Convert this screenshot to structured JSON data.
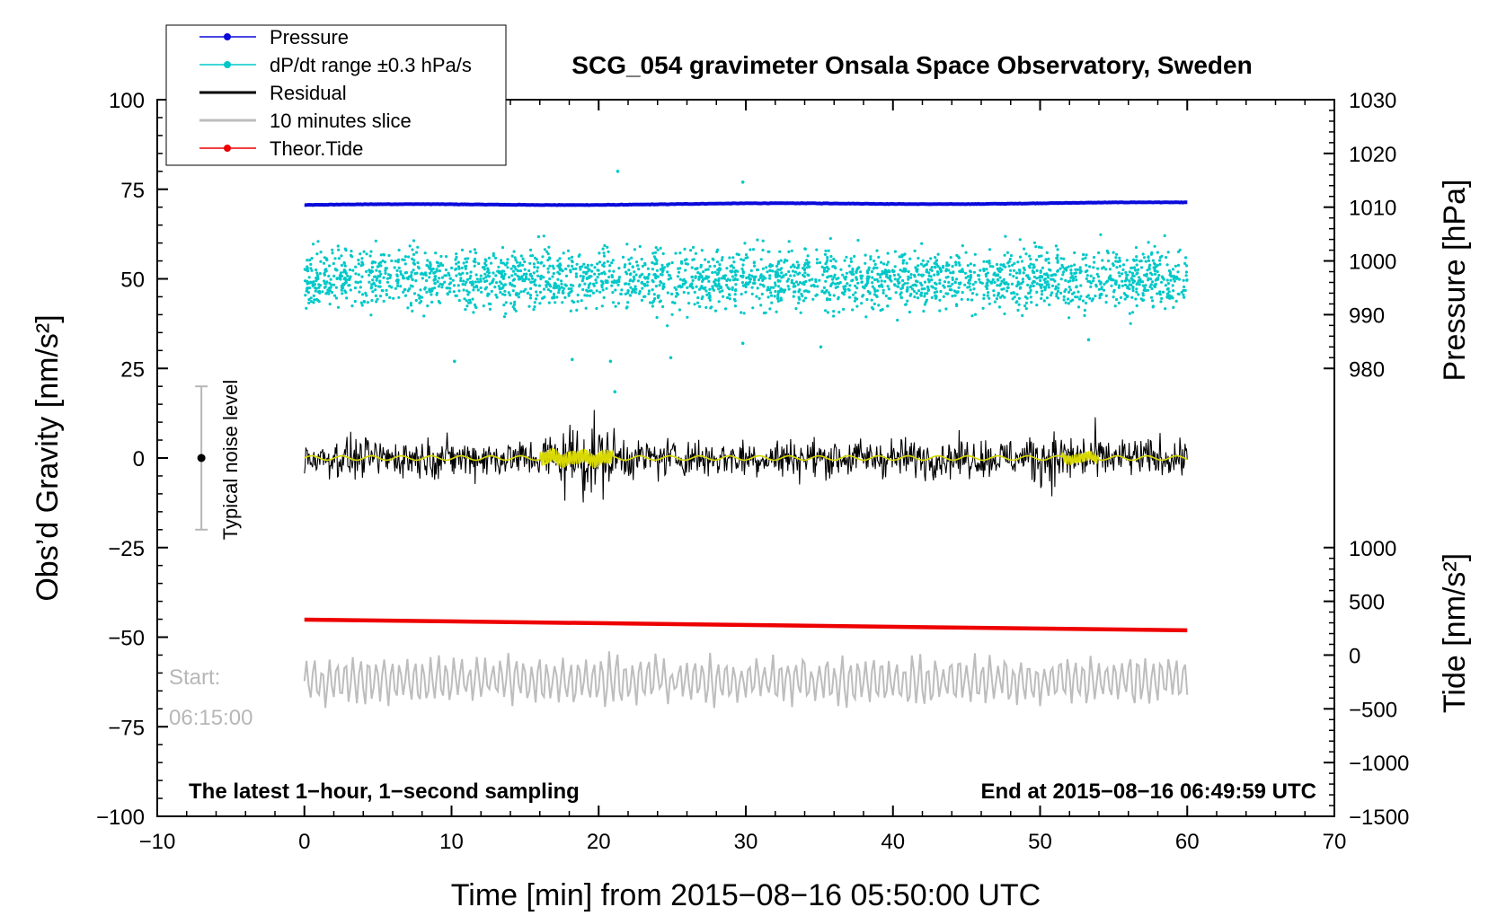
{
  "chart_data": {
    "type": "line",
    "title": "SCG_054 gravimeter Onsala Space Observatory, Sweden",
    "xlabel": "Time [min] from 2015−08−16 05:50:00 UTC",
    "ylabel_left": "Obs’d Gravity [nm/s²]",
    "ylabel_right_pressure": "Pressure [hPa]",
    "ylabel_right_tide": "Tide [nm/s²]",
    "xlim": [
      -10,
      70
    ],
    "ylim_left": [
      -100,
      100
    ],
    "x_ticks": [
      -10,
      0,
      10,
      20,
      30,
      40,
      50,
      60,
      70
    ],
    "x_tick_labels": [
      "−10",
      "0",
      "10",
      "20",
      "30",
      "40",
      "50",
      "60",
      "70"
    ],
    "y_left_ticks": [
      100,
      75,
      50,
      25,
      0,
      -25,
      -50,
      -75,
      -100
    ],
    "y_left_tick_labels": [
      "100",
      "75",
      "50",
      "25",
      "0",
      "−25",
      "−50",
      "−75",
      "−100"
    ],
    "pressure_axis": {
      "ticks": [
        1030,
        1020,
        1010,
        1000,
        990,
        980
      ],
      "tick_labels": [
        "1030",
        "1020",
        "1010",
        "1000",
        "990",
        "980"
      ]
    },
    "tide_axis": {
      "ticks": [
        1000,
        500,
        0,
        -500,
        -1000,
        -1500
      ],
      "tick_labels": [
        "1000",
        "500",
        "0",
        "−500",
        "−1000",
        "−1500"
      ]
    },
    "legend": [
      {
        "label": "Pressure",
        "color": "#0a0adc",
        "marker": true
      },
      {
        "label": "dP/dt range ±0.3 hPa/s",
        "color": "#00c8c8",
        "marker": true
      },
      {
        "label": "Residual",
        "color": "#000000",
        "marker": false
      },
      {
        "label": "10 minutes slice",
        "color": "#bdbdbd",
        "marker": false
      },
      {
        "label": "Theor.Tide",
        "color": "#ee0000",
        "marker": true
      }
    ],
    "series": [
      {
        "name": "Pressure",
        "axis": "pressure",
        "x": [
          0,
          60
        ],
        "values": [
          1010.4,
          1010.8
        ],
        "color": "#0a0adc"
      },
      {
        "name": "dP/dt range ±0.3 hPa/s",
        "axis": "left",
        "center": 50,
        "spread": 8,
        "color": "#00c8c8"
      },
      {
        "name": "Residual",
        "axis": "left",
        "center": 0,
        "spread": 3,
        "burst_x": [
          16,
          22
        ],
        "burst_amplitude": 15,
        "color": "#000000"
      },
      {
        "name": "Residual smoothed",
        "axis": "left",
        "center": 0,
        "color": "#d8d800"
      },
      {
        "name": "10 minutes slice",
        "axis": "left",
        "center": -62,
        "spread": 6,
        "color": "#bdbdbd"
      },
      {
        "name": "Theor.Tide",
        "axis": "tide",
        "x": [
          0,
          60
        ],
        "values": [
          330,
          230
        ],
        "color": "#ee0000"
      }
    ],
    "noise_bar": {
      "x": -7,
      "center": 0,
      "low": -20,
      "high": 20,
      "label": "Typical noise level"
    },
    "annotations": {
      "bottom_left": "The latest 1−hour, 1−second sampling",
      "bottom_right": "End at 2015−08−16 06:49:59 UTC",
      "start_label": "Start:",
      "start_time": "06:15:00"
    }
  }
}
